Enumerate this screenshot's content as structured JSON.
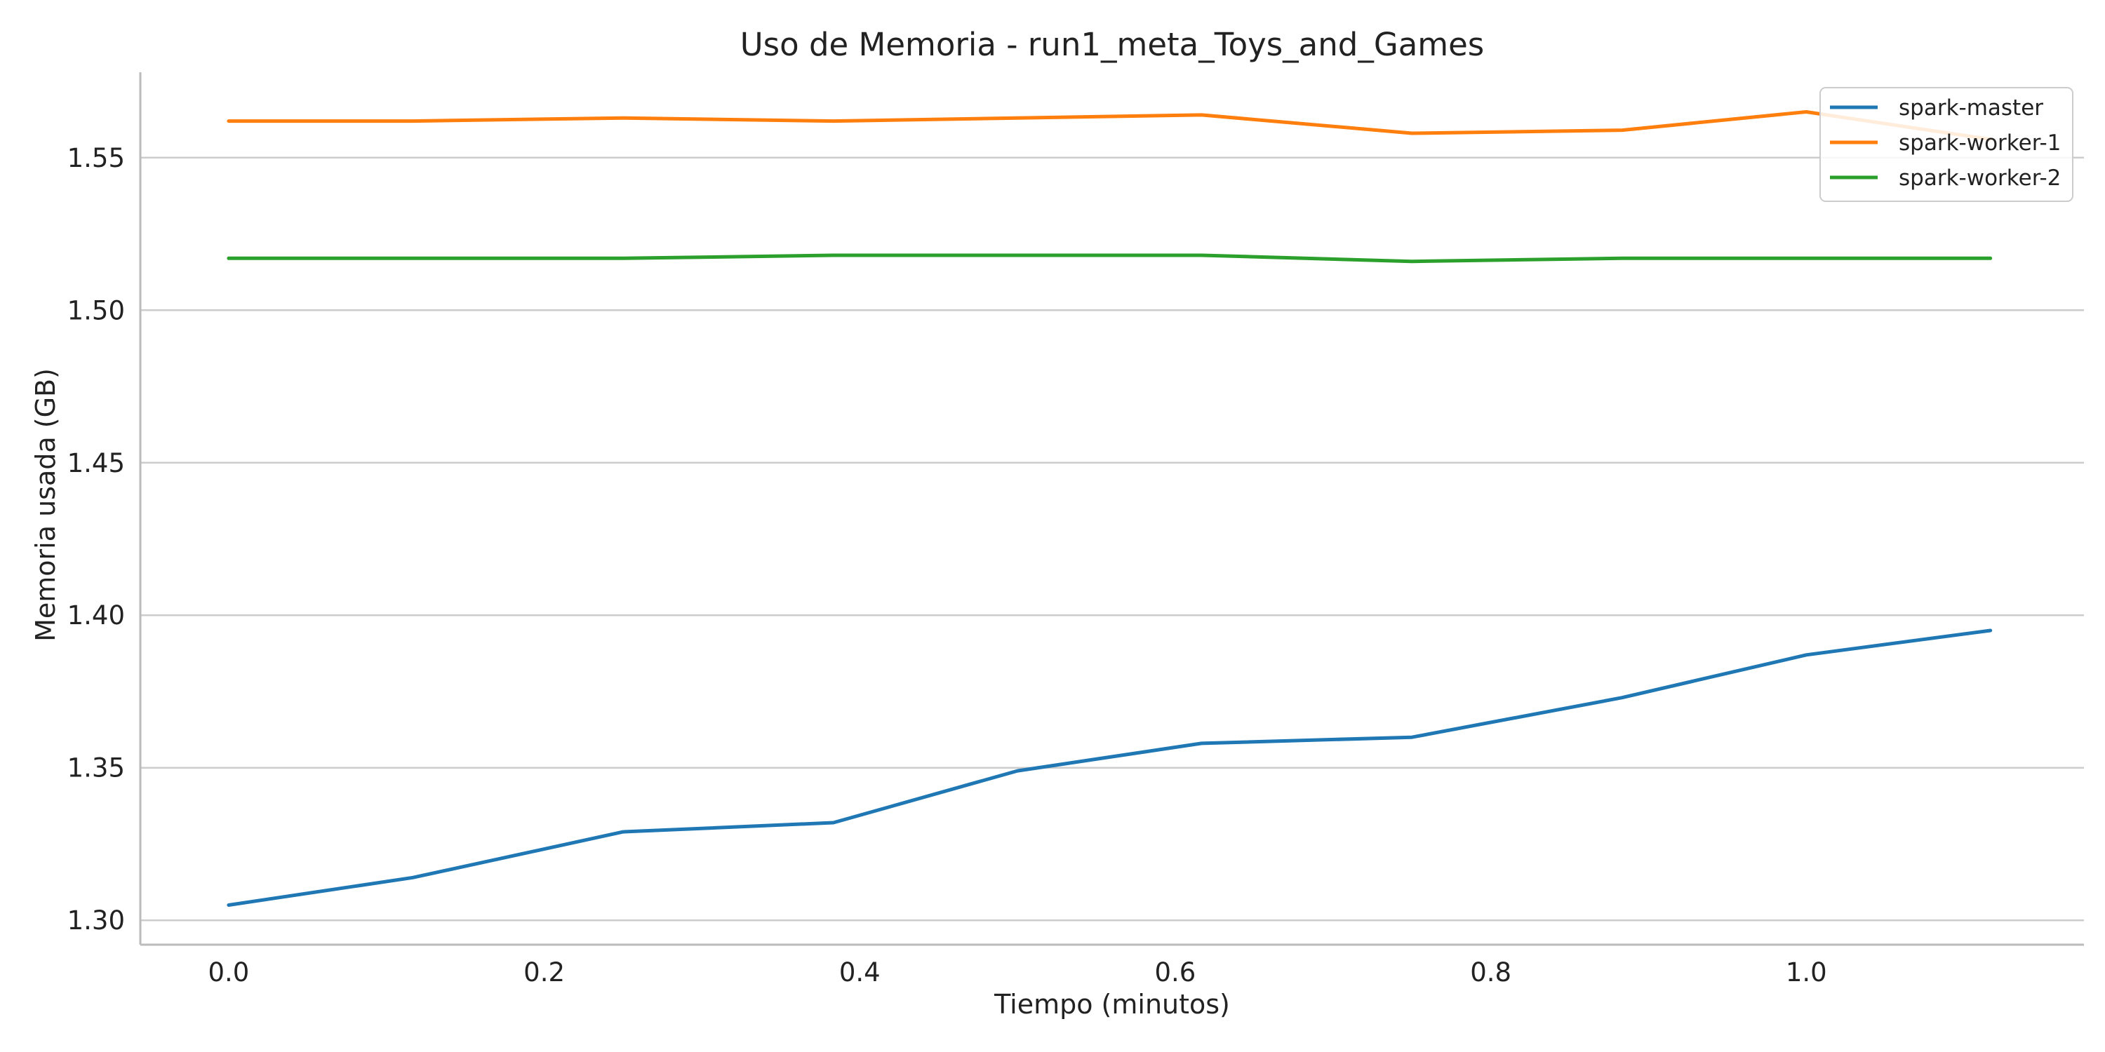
{
  "chart_data": {
    "type": "line",
    "title": "Uso de Memoria - run1_meta_Toys_and_Games",
    "xlabel": "Tiempo (minutos)",
    "ylabel": "Memoria usada (GB)",
    "xlim": [
      -0.056,
      1.176
    ],
    "ylim": [
      1.292,
      1.578
    ],
    "x_ticks": [
      0.0,
      0.2,
      0.4,
      0.6,
      0.8,
      1.0
    ],
    "x_tick_labels": [
      "0.0",
      "0.2",
      "0.4",
      "0.6",
      "0.8",
      "1.0"
    ],
    "y_ticks": [
      1.3,
      1.35,
      1.4,
      1.45,
      1.5,
      1.55
    ],
    "y_tick_labels": [
      "1.30",
      "1.35",
      "1.40",
      "1.45",
      "1.50",
      "1.55"
    ],
    "grid": "horizontal",
    "legend_position": "top-right",
    "x": [
      0.0,
      0.1167,
      0.25,
      0.3833,
      0.5,
      0.6167,
      0.75,
      0.8833,
      1.0,
      1.1167
    ],
    "series": [
      {
        "name": "spark-master",
        "color": "#1f77b4",
        "values": [
          1.305,
          1.314,
          1.329,
          1.332,
          1.349,
          1.358,
          1.36,
          1.373,
          1.387,
          1.395
        ]
      },
      {
        "name": "spark-worker-1",
        "color": "#ff7f0e",
        "values": [
          1.562,
          1.562,
          1.563,
          1.562,
          1.563,
          1.564,
          1.558,
          1.559,
          1.565,
          1.556
        ]
      },
      {
        "name": "spark-worker-2",
        "color": "#2ca02c",
        "values": [
          1.517,
          1.517,
          1.517,
          1.518,
          1.518,
          1.518,
          1.516,
          1.517,
          1.517,
          1.517
        ]
      }
    ]
  }
}
